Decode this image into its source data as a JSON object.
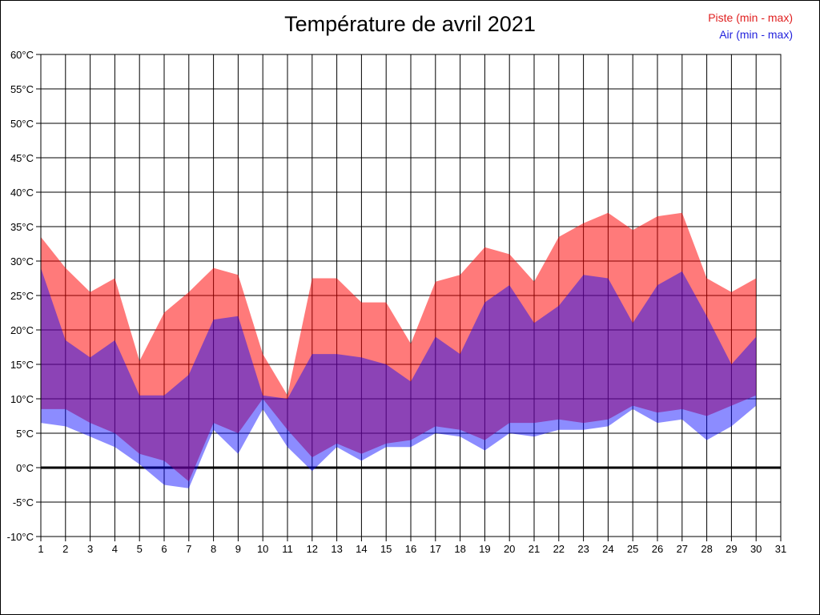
{
  "title": "Température de avril 2021",
  "legend": {
    "piste": {
      "label": "Piste (min - max)",
      "color": "#e02020"
    },
    "air": {
      "label": "Air (min - max)",
      "color": "#2323dd"
    }
  },
  "chart_data": {
    "type": "area",
    "title": "Température de avril 2021",
    "xlabel": "",
    "ylabel": "",
    "xlim": [
      1,
      31
    ],
    "ylim": [
      -10,
      60
    ],
    "grid": true,
    "zero_line": true,
    "legend_position": "top-right",
    "x_ticks": [
      "1",
      "2",
      "3",
      "4",
      "5",
      "6",
      "7",
      "8",
      "9",
      "10",
      "11",
      "12",
      "13",
      "14",
      "15",
      "16",
      "17",
      "18",
      "19",
      "20",
      "21",
      "22",
      "23",
      "24",
      "25",
      "26",
      "27",
      "28",
      "29",
      "30",
      "31"
    ],
    "y_ticks": [
      "60°C",
      "55°C",
      "50°C",
      "45°C",
      "40°C",
      "35°C",
      "30°C",
      "25°C",
      "20°C",
      "15°C",
      "10°C",
      "5°C",
      "0°C",
      "-5°C",
      "-10°C"
    ],
    "y_tick_values": [
      60,
      55,
      50,
      45,
      40,
      35,
      30,
      25,
      20,
      15,
      10,
      5,
      0,
      -5,
      -10
    ],
    "days": [
      1,
      2,
      3,
      4,
      5,
      6,
      7,
      8,
      9,
      10,
      11,
      12,
      13,
      14,
      15,
      16,
      17,
      18,
      19,
      20,
      21,
      22,
      23,
      24,
      25,
      26,
      27,
      28,
      29,
      30
    ],
    "series": [
      {
        "name": "Piste max",
        "values": [
          33.5,
          29,
          25.5,
          27.5,
          15.5,
          22.5,
          25.5,
          29,
          28,
          16.5,
          10.5,
          27.5,
          27.5,
          24,
          24,
          18,
          27,
          28,
          32,
          31,
          27,
          33.5,
          35.5,
          37,
          34.5,
          36.5,
          37,
          27.5,
          25.5,
          27.5
        ]
      },
      {
        "name": "Piste min",
        "values": [
          8.5,
          8.5,
          6.5,
          5,
          2,
          1,
          -2,
          6.5,
          5,
          10,
          5.5,
          1.5,
          3.5,
          2,
          3.5,
          4,
          6,
          5.5,
          4,
          6.5,
          6.5,
          7,
          6.5,
          7,
          9,
          8,
          8.5,
          7.5,
          9,
          10.5
        ]
      },
      {
        "name": "Air max",
        "values": [
          29,
          18.5,
          16,
          18.5,
          10.5,
          10.5,
          13.5,
          21.5,
          22,
          10.5,
          10,
          16.5,
          16.5,
          16,
          15,
          12.5,
          19,
          16.5,
          24,
          26.5,
          21,
          23.5,
          28,
          27.5,
          21,
          26.5,
          28.5,
          22,
          15,
          19
        ]
      },
      {
        "name": "Air min",
        "values": [
          6.5,
          6,
          4.5,
          3,
          0.5,
          -2.5,
          -3,
          5.5,
          2,
          8.5,
          3,
          -0.5,
          3,
          1,
          3,
          3,
          5,
          4.5,
          2.5,
          5,
          4.5,
          5.5,
          5.5,
          6,
          8.5,
          6.5,
          7,
          4,
          6,
          9
        ]
      }
    ],
    "bands": [
      {
        "name": "Piste (min - max)",
        "top": "Piste max",
        "bottom": "Piste min",
        "fill": "#ff0000",
        "opacity": 0.52
      },
      {
        "name": "Air (min - max)",
        "top": "Air max",
        "bottom": "Air min",
        "fill": "#0000ff",
        "opacity": 0.45
      }
    ],
    "grid_color": "#000000",
    "axis_color": "#000000"
  }
}
